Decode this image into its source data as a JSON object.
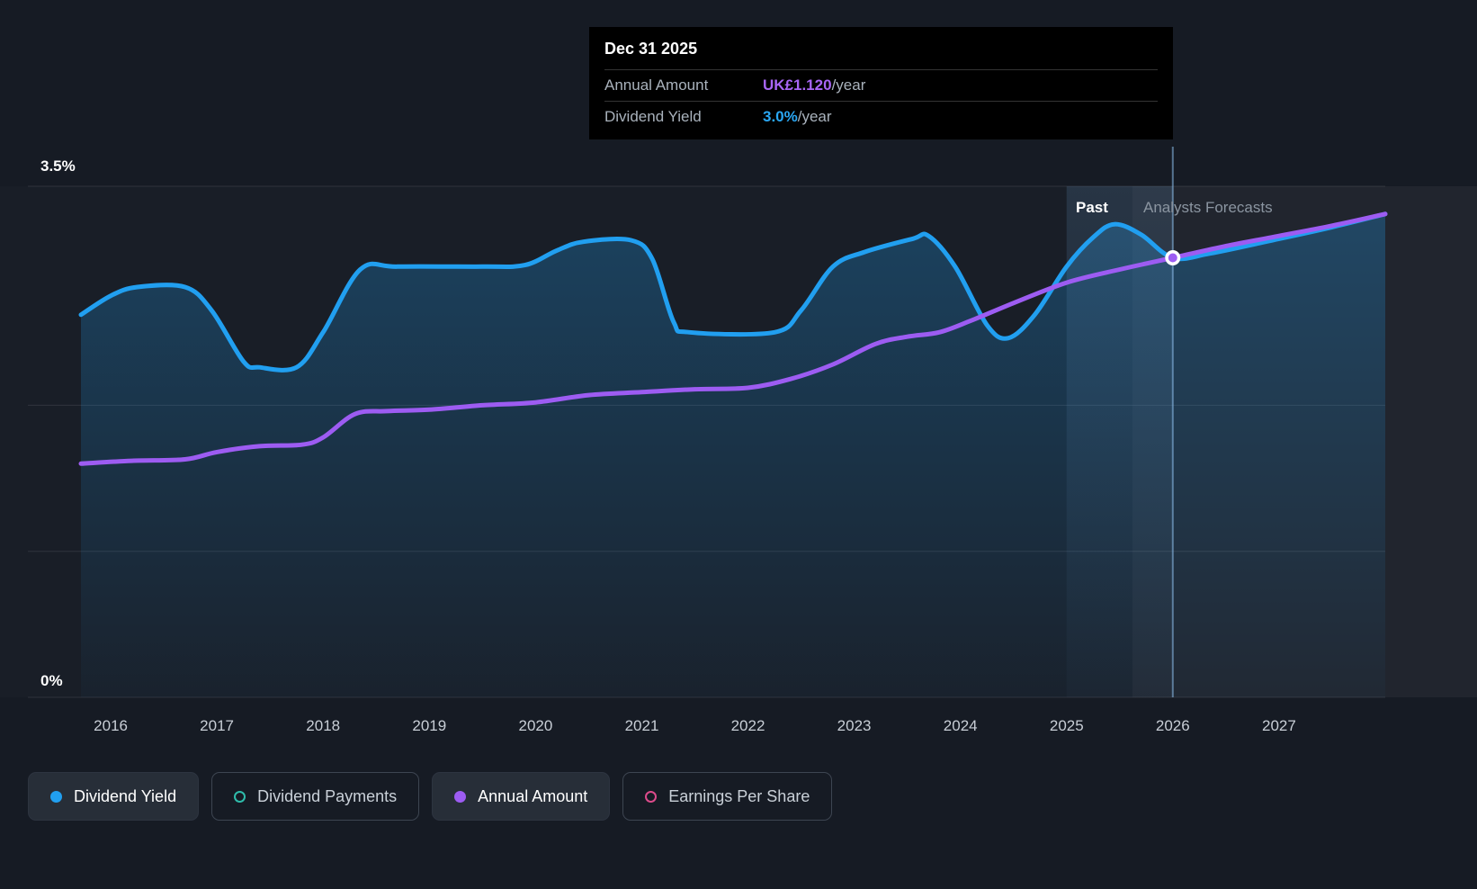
{
  "labels": {
    "past": "Past",
    "forecast": "Analysts Forecasts"
  },
  "tooltip": {
    "title": "Dec 31 2025",
    "rows": [
      {
        "label": "Annual Amount",
        "value": "UK£1.120",
        "suffix": "/year",
        "color": "#a866f5"
      },
      {
        "label": "Dividend Yield",
        "value": "3.0%",
        "suffix": "/year",
        "color": "#2aa7f3"
      }
    ]
  },
  "legend": [
    {
      "label": "Dividend Yield",
      "color": "#219ff0",
      "marker": "filled",
      "chip": "solid"
    },
    {
      "label": "Dividend Payments",
      "color": "#2fbcab",
      "marker": "open",
      "chip": "outline"
    },
    {
      "label": "Annual Amount",
      "color": "#9d5cf2",
      "marker": "filled",
      "chip": "solid"
    },
    {
      "label": "Earnings Per Share",
      "color": "#dc4b8b",
      "marker": "open",
      "chip": "outline"
    }
  ],
  "colors": {
    "background": "#161b24",
    "plot_background": "rgba(255,255,255,0.015)",
    "grid": "rgba(255,255,255,0.10)",
    "blue": "#219ff0",
    "purple": "#9d5cf2",
    "forecast_region": "rgba(255,255,255,0.035)",
    "hover_band": "#6ea5d7",
    "hover_line": "rgba(140,190,235,0.55)",
    "tick_text": "#c8ced6"
  },
  "chart_data": {
    "type": "line",
    "title": "Dividend yield and annual dividend amount, past and analyst forecasts",
    "x_domain": [
      2015.72,
      2028.0
    ],
    "y_domain": [
      0,
      3.5
    ],
    "x_ticks": [
      2016,
      2017,
      2018,
      2019,
      2020,
      2021,
      2022,
      2023,
      2024,
      2025,
      2026,
      2027
    ],
    "gridlines": [
      3.5,
      2,
      1,
      0
    ],
    "y_tick_labels": {
      "top": "3.5%",
      "bottom": "0%"
    },
    "ylabel_unit": "%",
    "grid": true,
    "legend_position": "bottom-left",
    "past_until": 2025.62,
    "highlight_band": [
      2025.0,
      2026.0
    ],
    "hover_x": 2026.0,
    "marker": {
      "x": 2026.0,
      "y": 3.01,
      "series": "Annual Amount",
      "annual_amount": "UK£1.120/year",
      "dividend_yield": "3.0%/year"
    },
    "series": [
      {
        "name": "Dividend Yield",
        "color": "#219ff0",
        "area": true,
        "points": [
          [
            2015.72,
            2.62
          ],
          [
            2016.0,
            2.75
          ],
          [
            2016.25,
            2.81
          ],
          [
            2016.7,
            2.81
          ],
          [
            2016.95,
            2.65
          ],
          [
            2017.25,
            2.3
          ],
          [
            2017.4,
            2.26
          ],
          [
            2017.75,
            2.26
          ],
          [
            2018.0,
            2.5
          ],
          [
            2018.35,
            2.93
          ],
          [
            2018.7,
            2.95
          ],
          [
            2019.5,
            2.95
          ],
          [
            2019.9,
            2.96
          ],
          [
            2020.2,
            3.06
          ],
          [
            2020.45,
            3.12
          ],
          [
            2020.9,
            3.13
          ],
          [
            2021.1,
            3.0
          ],
          [
            2021.3,
            2.57
          ],
          [
            2021.45,
            2.5
          ],
          [
            2022.25,
            2.5
          ],
          [
            2022.5,
            2.65
          ],
          [
            2022.8,
            2.95
          ],
          [
            2023.1,
            3.05
          ],
          [
            2023.55,
            3.14
          ],
          [
            2023.7,
            3.16
          ],
          [
            2023.95,
            2.95
          ],
          [
            2024.25,
            2.55
          ],
          [
            2024.45,
            2.46
          ],
          [
            2024.7,
            2.62
          ],
          [
            2025.0,
            2.95
          ],
          [
            2025.25,
            3.15
          ],
          [
            2025.45,
            3.24
          ],
          [
            2025.7,
            3.17
          ],
          [
            2026.0,
            3.01
          ],
          [
            2026.35,
            3.04
          ],
          [
            2027.0,
            3.14
          ],
          [
            2027.5,
            3.22
          ],
          [
            2028.0,
            3.31
          ]
        ]
      },
      {
        "name": "Annual Amount",
        "color": "#9d5cf2",
        "area": false,
        "points": [
          [
            2015.72,
            1.6
          ],
          [
            2016.2,
            1.62
          ],
          [
            2016.7,
            1.63
          ],
          [
            2017.0,
            1.68
          ],
          [
            2017.4,
            1.72
          ],
          [
            2017.8,
            1.73
          ],
          [
            2018.0,
            1.78
          ],
          [
            2018.3,
            1.94
          ],
          [
            2018.6,
            1.96
          ],
          [
            2019.0,
            1.97
          ],
          [
            2019.5,
            2.0
          ],
          [
            2020.0,
            2.02
          ],
          [
            2020.5,
            2.07
          ],
          [
            2021.0,
            2.09
          ],
          [
            2021.5,
            2.11
          ],
          [
            2022.0,
            2.12
          ],
          [
            2022.4,
            2.18
          ],
          [
            2022.8,
            2.28
          ],
          [
            2023.2,
            2.42
          ],
          [
            2023.5,
            2.47
          ],
          [
            2023.8,
            2.5
          ],
          [
            2024.1,
            2.58
          ],
          [
            2024.5,
            2.7
          ],
          [
            2025.0,
            2.84
          ],
          [
            2025.5,
            2.93
          ],
          [
            2026.0,
            3.01
          ],
          [
            2026.5,
            3.09
          ],
          [
            2027.0,
            3.16
          ],
          [
            2027.5,
            3.23
          ],
          [
            2028.0,
            3.31
          ]
        ]
      }
    ]
  }
}
